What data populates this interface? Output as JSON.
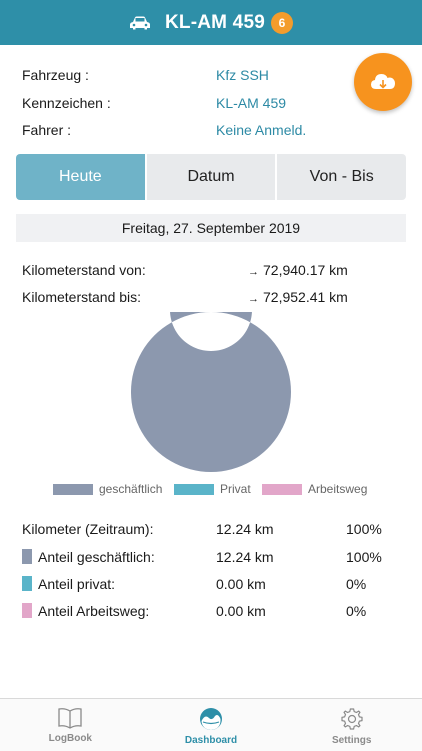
{
  "header": {
    "title": "KL-AM 459",
    "badge": "6",
    "icon": "car-icon"
  },
  "vehicle_info": {
    "fahrzeug_label": "Fahrzeug :",
    "fahrzeug_value": "Kfz SSH",
    "kennzeichen_label": "Kennzeichen :",
    "kennzeichen_value": "KL-AM 459",
    "fahrer_label": "Fahrer :",
    "fahrer_value": "Keine Anmeld."
  },
  "cloud_button": {
    "icon": "cloud-download-icon",
    "color": "#f7931e"
  },
  "segments": {
    "today": "Heute",
    "date": "Datum",
    "range": "Von - Bis",
    "active": "today"
  },
  "date_label": "Freitag, 27. September 2019",
  "odometer": {
    "from_label": "Kilometerstand von:",
    "from_value": "72,940.17 km",
    "to_label": "Kilometerstand bis:",
    "to_value": "72,952.41 km"
  },
  "chart_data": {
    "type": "pie",
    "donut": true,
    "categories": [
      "geschäftlich",
      "Privat",
      "Arbeitsweg"
    ],
    "values": [
      12.24,
      0.0,
      0.0
    ],
    "colors": [
      "#8c98ae",
      "#5ab4c9",
      "#e2a6c9"
    ],
    "legend": "bottom"
  },
  "stats": {
    "total_label": "Kilometer (Zeitraum):",
    "total_km": "12.24 km",
    "total_pct": "100%",
    "business_label": "Anteil geschäftlich:",
    "business_km": "12.24 km",
    "business_pct": "100%",
    "private_label": "Anteil privat:",
    "private_km": "0.00 km",
    "private_pct": "0%",
    "commute_label": "Anteil Arbeitsweg:",
    "commute_km": "0.00 km",
    "commute_pct": "0%"
  },
  "tabbar": {
    "logbook": "LogBook",
    "dashboard": "Dashboard",
    "settings": "Settings",
    "active": "dashboard"
  },
  "colors": {
    "primary": "#2e8fa8",
    "accent": "#f39c2c"
  }
}
